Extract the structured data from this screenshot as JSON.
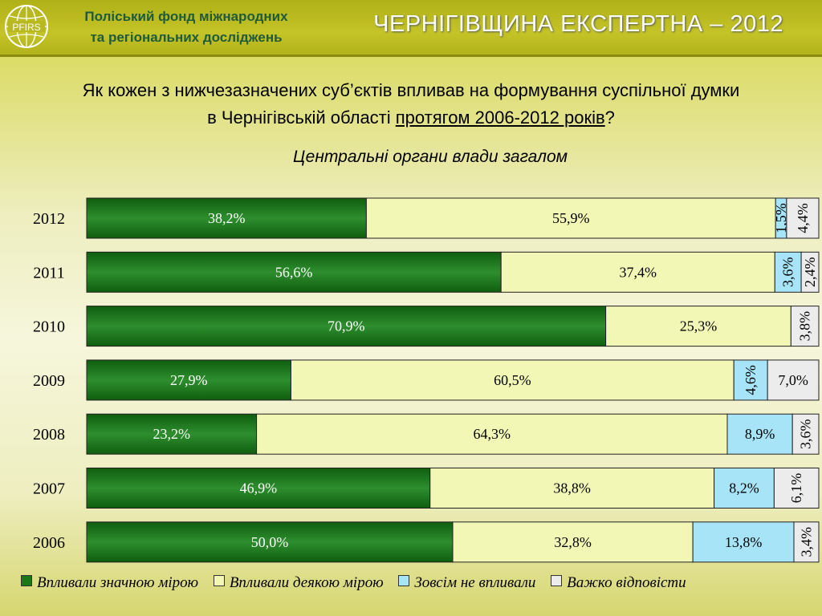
{
  "header": {
    "org_line1": "Поліський фонд міжнародних",
    "org_line2": "та регіональних досліджень",
    "logo_text": "PFIRS",
    "title": "ЧЕРНІГІВЩИНА ЕКСПЕРТНА – 2012"
  },
  "question": {
    "line1": "Як кожен з нижчезазначених суб’єктів впливав на формування суспільної думки",
    "line2_a": "в Чернігівській області ",
    "line2_u": "протягом 2006-2012 років",
    "line2_b": "?"
  },
  "subtitle": "Центральні органи влади загалом",
  "colors": {
    "dark_green": "#177a17",
    "light_yellow": "#f2f7b6",
    "light_blue": "#a8e4f8",
    "light_gray": "#ececec"
  },
  "chart_data": {
    "type": "bar",
    "orientation": "horizontal",
    "stacked": true,
    "categories": [
      "2012",
      "2011",
      "2010",
      "2009",
      "2008",
      "2007",
      "2006"
    ],
    "series": [
      {
        "name": "Впливали значною мірою",
        "values": [
          38.2,
          56.6,
          70.9,
          27.9,
          23.2,
          46.9,
          50.0
        ],
        "labels": [
          "38,2%",
          "56,6%",
          "70,9%",
          "27,9%",
          "23,2%",
          "46,9%",
          "50,0%"
        ]
      },
      {
        "name": "Впливали деякою мірою",
        "values": [
          55.9,
          37.4,
          25.3,
          60.5,
          64.3,
          38.8,
          32.8
        ],
        "labels": [
          "55,9%",
          "37,4%",
          "25,3%",
          "60,5%",
          "64,3%",
          "38,8%",
          "32,8%"
        ]
      },
      {
        "name": "Зовсім не впливали",
        "values": [
          1.5,
          3.6,
          0,
          4.6,
          8.9,
          8.2,
          13.8
        ],
        "labels": [
          "1,5%",
          "3,6%",
          "",
          "4,6%",
          "8,9%",
          "8,2%",
          "13,8%"
        ]
      },
      {
        "name": "Важко відповісти",
        "values": [
          4.4,
          2.4,
          3.8,
          7.0,
          3.6,
          6.1,
          3.4
        ],
        "labels": [
          "4,4%",
          "2,4%",
          "3,8%",
          "7,0%",
          "3,6%",
          "6,1%",
          "3,4%"
        ]
      }
    ],
    "xlim": [
      0,
      100
    ],
    "legend_position": "bottom"
  }
}
